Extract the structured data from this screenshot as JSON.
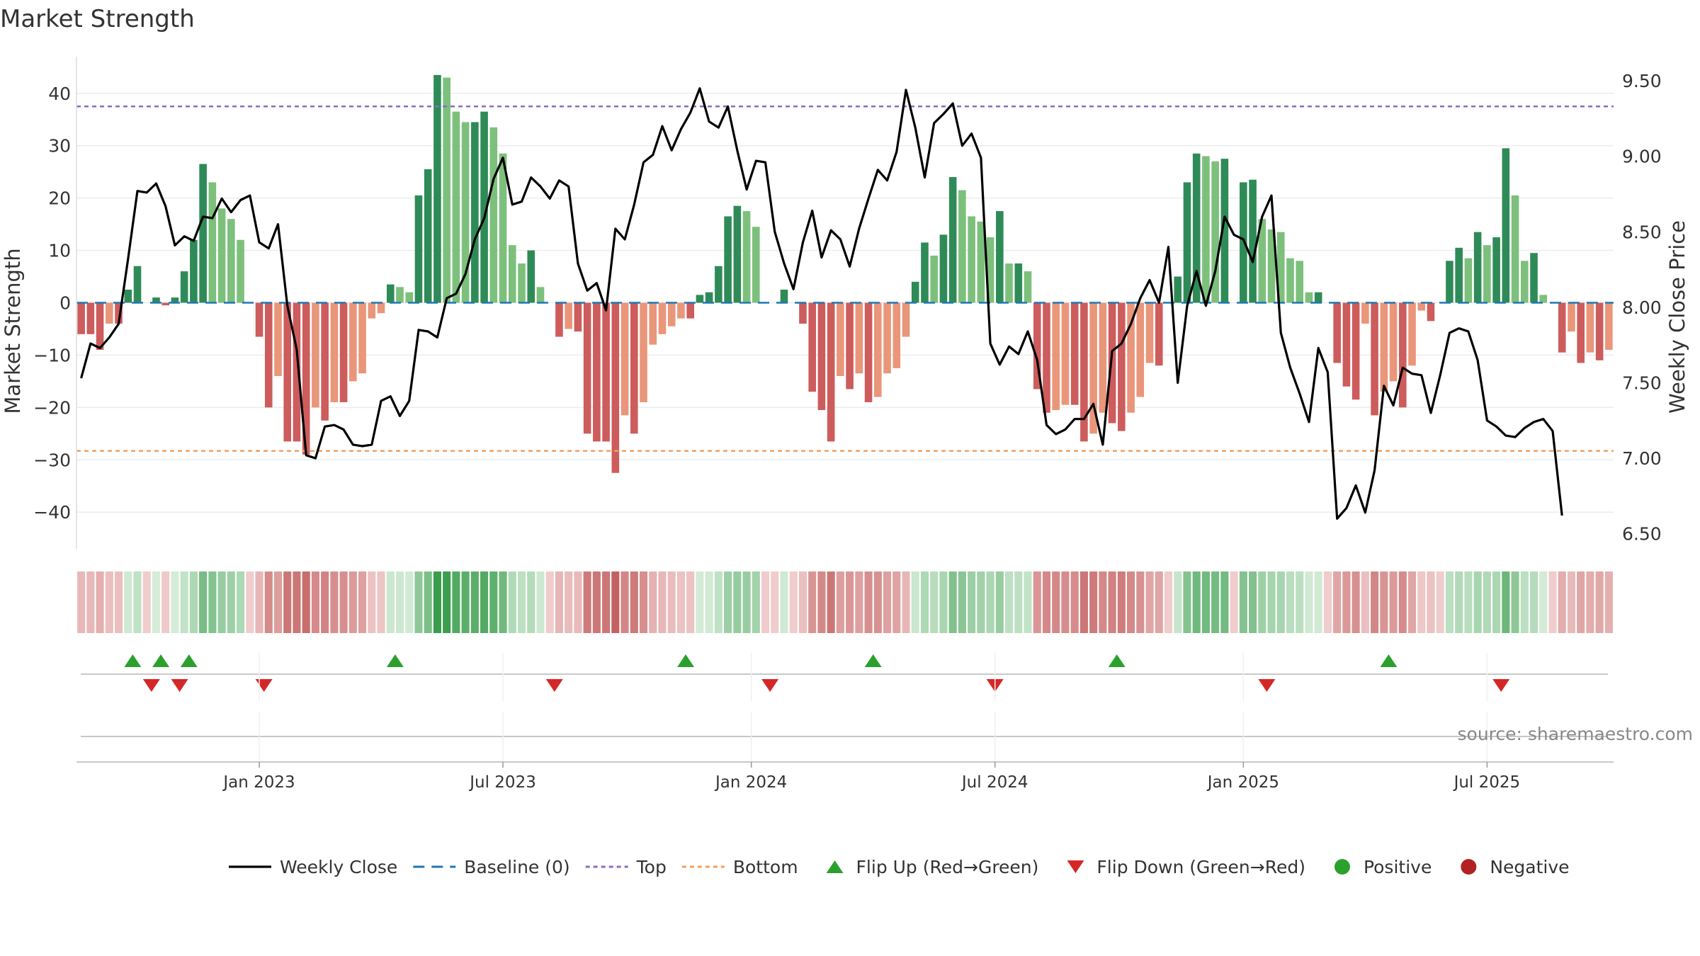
{
  "chart_data": {
    "type": "bar+line",
    "title": "Market Strength",
    "left_axis": {
      "label": "Market Strength",
      "range": [
        -47,
        47
      ],
      "ticks": [
        40,
        30,
        20,
        10,
        0,
        -10,
        -20,
        -30,
        -40
      ],
      "tick_labels": [
        "40",
        "30",
        "20",
        "10",
        "0",
        "−10",
        "−20",
        "−30",
        "−40"
      ]
    },
    "right_axis": {
      "label": "Weekly Close Price",
      "range": [
        6.4,
        9.66
      ],
      "ticks": [
        9.5,
        9.0,
        8.5,
        8.0,
        7.5,
        7.0,
        6.5
      ],
      "tick_labels": [
        "9.50",
        "9.00",
        "8.50",
        "8.00",
        "7.50",
        "7.00",
        "6.50"
      ]
    },
    "x_axis": {
      "labels": [
        "Jan 2023",
        "Jul 2023",
        "Jan 2024",
        "Jul 2024",
        "Jan 2025",
        "Jul 2025"
      ],
      "label_week_index": [
        19,
        45,
        71.5,
        97.5,
        124,
        150
      ]
    },
    "top_level": 37.5,
    "bottom_level": -28.3,
    "strength": [
      -6,
      -6,
      -9,
      -4,
      -4,
      2.5,
      7,
      0,
      1,
      -0.5,
      1,
      6,
      12,
      26.5,
      23,
      18,
      16,
      12,
      0,
      -6.5,
      -20,
      -14,
      -26.5,
      -26.5,
      -29,
      -20,
      -22.5,
      -19,
      -19,
      -15,
      -13.5,
      -3,
      -2,
      3.5,
      3,
      2,
      20.5,
      25.5,
      43.5,
      43,
      36.5,
      34.5,
      34.5,
      36.5,
      33.5,
      28.5,
      11,
      7.5,
      10,
      3,
      0,
      -6.5,
      -5,
      -5.5,
      -25,
      -26.5,
      -26.5,
      -32.5,
      -21.5,
      -25,
      -19,
      -8,
      -6,
      -4.5,
      -3,
      -3,
      1.5,
      2,
      7,
      16.5,
      18.5,
      17.5,
      14.5,
      0,
      0,
      2.5,
      0,
      -4,
      -17,
      -20.5,
      -26.5,
      -14,
      -16.5,
      -13.5,
      -19,
      -18,
      -13.5,
      -12.5,
      -6.5,
      4,
      11.5,
      9,
      13,
      24,
      21.5,
      16.5,
      15.5,
      12.5,
      17.5,
      7.5,
      7.5,
      6,
      -16.5,
      -21,
      -20.5,
      -19.5,
      -19.5,
      -26.5,
      -25,
      -21,
      -23,
      -24.5,
      -21,
      -18,
      -11.5,
      -12,
      0,
      5,
      23,
      28.5,
      28,
      27,
      27.5,
      0,
      23,
      23.5,
      16,
      14,
      13.5,
      8.5,
      8,
      2,
      2,
      0,
      -11.5,
      -16,
      -18.5,
      -4,
      -21.5,
      -17,
      -15,
      -20,
      -12,
      -1.5,
      -3.5,
      0,
      8,
      10.5,
      8.5,
      13.5,
      11,
      12.5,
      29.5,
      20.5,
      8,
      9.5,
      1.5,
      0,
      -9.5,
      -5.5,
      -11.5,
      -9.5,
      -11,
      -9
    ],
    "close": [
      7.53,
      7.76,
      7.73,
      7.8,
      7.89,
      8.32,
      8.77,
      8.76,
      8.82,
      8.67,
      8.41,
      8.47,
      8.44,
      8.6,
      8.59,
      8.72,
      8.63,
      8.71,
      8.74,
      8.43,
      8.39,
      8.55,
      8.01,
      7.72,
      7.02,
      7.0,
      7.21,
      7.22,
      7.19,
      7.09,
      7.08,
      7.09,
      7.38,
      7.41,
      7.28,
      7.38,
      7.85,
      7.84,
      7.8,
      8.06,
      8.09,
      8.22,
      8.45,
      8.59,
      8.85,
      8.99,
      8.68,
      8.7,
      8.86,
      8.8,
      8.72,
      8.84,
      8.8,
      8.29,
      8.11,
      8.16,
      7.98,
      8.52,
      8.45,
      8.68,
      8.96,
      9.01,
      9.2,
      9.04,
      9.18,
      9.29,
      9.45,
      9.23,
      9.19,
      9.33,
      9.04,
      8.78,
      8.97,
      8.96,
      8.5,
      8.29,
      8.12,
      8.43,
      8.64,
      8.33,
      8.51,
      8.45,
      8.27,
      8.52,
      8.72,
      8.91,
      8.84,
      9.03,
      9.44,
      9.19,
      8.86,
      9.22,
      9.28,
      9.35,
      9.07,
      9.15,
      8.99,
      7.76,
      7.62,
      7.74,
      7.69,
      7.84,
      7.65,
      7.22,
      7.16,
      7.19,
      7.26,
      7.26,
      7.36,
      7.09,
      7.71,
      7.76,
      7.89,
      8.06,
      8.18,
      8.03,
      8.4,
      7.5,
      8.01,
      8.24,
      8.01,
      8.24,
      8.6,
      8.48,
      8.45,
      8.3,
      8.6,
      8.74,
      7.83,
      7.6,
      7.43,
      7.24,
      7.73,
      7.57,
      6.6,
      6.67,
      6.82,
      6.64,
      6.92,
      7.48,
      7.35,
      7.6,
      7.56,
      7.55,
      7.3,
      7.55,
      7.83,
      7.86,
      7.84,
      7.65,
      7.25,
      7.21,
      7.15,
      7.14,
      7.2,
      7.24,
      7.26,
      7.18,
      6.62
    ],
    "flip_up_week_index": [
      5.5,
      8.5,
      11.5,
      33.5,
      64.5,
      84.5,
      110.5,
      139.5
    ],
    "flip_down_week_index": [
      7.5,
      10.5,
      19.5,
      50.5,
      73.5,
      97.5,
      126.5,
      151.5
    ],
    "colors": {
      "close_line": "#000000",
      "baseline": "#1f77b4",
      "top_line": "#8e6bbf",
      "bottom_line": "#f0a060",
      "bar_pos_strong": "#2e8b57",
      "bar_pos_weak": "#7cc07c",
      "bar_neg_strong": "#cd5c5c",
      "bar_neg_weak": "#e9967a",
      "flip_up": "#2ca02c",
      "flip_down": "#d62728",
      "positive": "#2ca02c",
      "negative": "#b22222"
    },
    "legend": {
      "close": "Weekly Close",
      "baseline": "Baseline (0)",
      "top": "Top",
      "bottom": "Bottom",
      "flip_up": "Flip Up (Red→Green)",
      "flip_down": "Flip Down (Green→Red)",
      "positive": "Positive",
      "negative": "Negative"
    },
    "source": "source: sharemaestro.com"
  }
}
